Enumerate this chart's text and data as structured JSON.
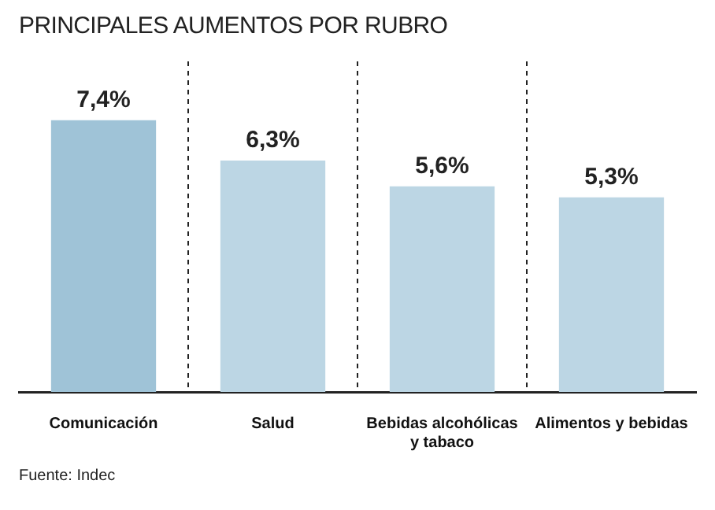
{
  "chart_data": {
    "type": "bar",
    "title": "PRINCIPALES AUMENTOS POR RUBRO",
    "categories": [
      "Comunicación",
      "Salud",
      "Bebidas alcohólicas y tabaco",
      "Alimentos y bebidas"
    ],
    "values": [
      7.4,
      6.3,
      5.6,
      5.3
    ],
    "colors": [
      "#9fc3d7",
      "#bcd6e4",
      "#bcd6e4",
      "#bcd6e4"
    ],
    "value_labels": [
      "7,4%",
      "6,3%",
      "5,6%",
      "5,3%"
    ],
    "grid": "x",
    "annotations": [
      "Fuente: Indec"
    ]
  }
}
